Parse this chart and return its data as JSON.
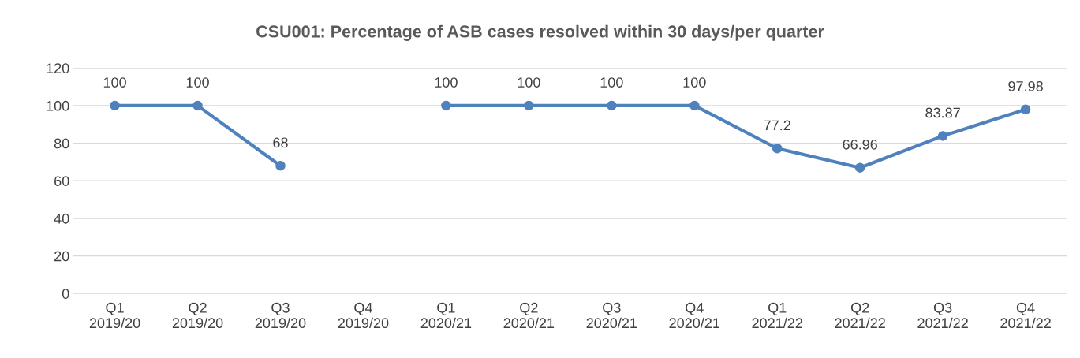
{
  "chart_data": {
    "type": "line",
    "title": "CSU001: Percentage of ASB cases resolved within 30 days/per quarter",
    "categories": [
      "Q1\n2019/20",
      "Q2\n2019/20",
      "Q3\n2019/20",
      "Q4\n2019/20",
      "Q1\n2020/21",
      "Q2\n2020/21",
      "Q3\n2020/21",
      "Q4\n2020/21",
      "Q1\n2021/22",
      "Q2\n2021/22",
      "Q3\n2021/22",
      "Q4\n2021/22"
    ],
    "series": [
      {
        "color": "#4f81bd",
        "values": [
          100,
          100,
          68,
          null,
          100,
          100,
          100,
          100,
          77.2,
          66.96,
          83.87,
          97.98
        ]
      }
    ],
    "ylim": [
      0,
      120
    ],
    "yticks": [
      0,
      20,
      40,
      60,
      80,
      100,
      120
    ],
    "grid": "y",
    "marker": "circle",
    "line_style": "solid",
    "data_labels": true
  }
}
